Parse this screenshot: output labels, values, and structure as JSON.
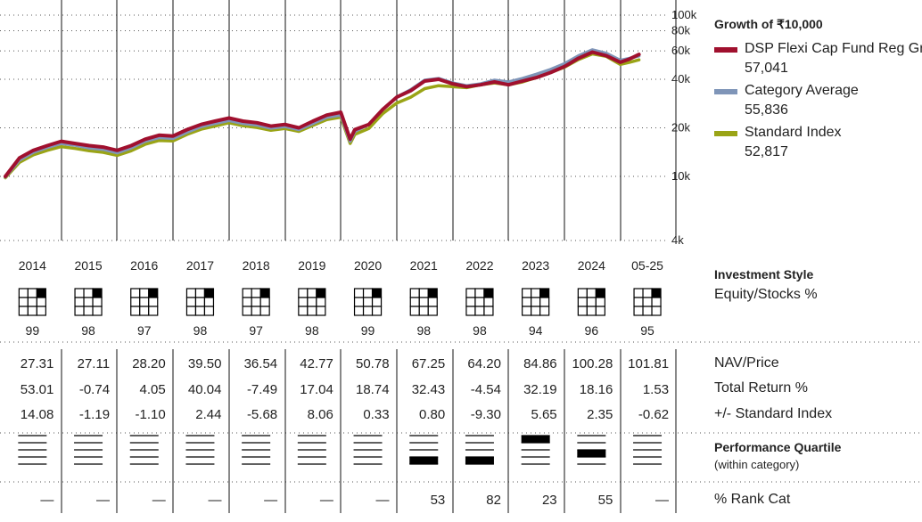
{
  "chart_data": {
    "type": "line",
    "title": "Growth of ₹10,000",
    "y_scale": "log",
    "ylim": [
      4000,
      100000
    ],
    "yticks": [
      {
        "value": 4000,
        "label": "4k"
      },
      {
        "value": 10000,
        "label": "10k"
      },
      {
        "value": 20000,
        "label": "20k"
      },
      {
        "value": 40000,
        "label": "40k"
      },
      {
        "value": 60000,
        "label": "60k"
      },
      {
        "value": 80000,
        "label": "80k"
      },
      {
        "value": 100000,
        "label": "100k"
      }
    ],
    "x_years": [
      "2014",
      "2015",
      "2016",
      "2017",
      "2018",
      "2019",
      "2020",
      "2021",
      "2022",
      "2023",
      "2024",
      "05-25"
    ],
    "x_dates": [
      "2014-01",
      "2014-04",
      "2014-07",
      "2014-10",
      "2015-01",
      "2015-04",
      "2015-07",
      "2015-10",
      "2016-01",
      "2016-04",
      "2016-07",
      "2016-10",
      "2017-01",
      "2017-04",
      "2017-07",
      "2017-10",
      "2018-01",
      "2018-04",
      "2018-07",
      "2018-10",
      "2019-01",
      "2019-04",
      "2019-07",
      "2019-10",
      "2020-01",
      "2020-03",
      "2020-04",
      "2020-07",
      "2020-10",
      "2021-01",
      "2021-04",
      "2021-07",
      "2021-10",
      "2022-01",
      "2022-04",
      "2022-07",
      "2022-10",
      "2023-01",
      "2023-04",
      "2023-07",
      "2023-10",
      "2024-01",
      "2024-04",
      "2024-07",
      "2024-10",
      "2025-01",
      "2025-03",
      "2025-05"
    ],
    "series": [
      {
        "name": "DSP Flexi Cap Fund Reg Gr",
        "color": "#a0102e",
        "end_value": "57,041",
        "values": [
          10000,
          13000,
          14500,
          15500,
          16500,
          16000,
          15500,
          15200,
          14500,
          15500,
          17000,
          18000,
          17800,
          19500,
          21000,
          22000,
          23000,
          22000,
          21500,
          20500,
          21000,
          20000,
          22000,
          24000,
          25000,
          17000,
          19500,
          21000,
          26000,
          31000,
          34000,
          39000,
          40000,
          37500,
          36000,
          37000,
          38500,
          37000,
          39000,
          41000,
          44000,
          48000,
          54000,
          59000,
          56000,
          51000,
          53500,
          57041
        ]
      },
      {
        "name": "Category Average",
        "color": "#7f95b8",
        "end_value": "55,836",
        "values": [
          9900,
          12600,
          14100,
          15100,
          16000,
          15600,
          15000,
          14700,
          14000,
          15000,
          16500,
          17400,
          17200,
          18800,
          20300,
          21300,
          22200,
          21300,
          20800,
          19900,
          20400,
          19500,
          21300,
          23200,
          24000,
          16500,
          19000,
          21000,
          26000,
          31000,
          34500,
          39500,
          40500,
          38000,
          36500,
          37500,
          39500,
          38500,
          40500,
          43000,
          46000,
          50000,
          56000,
          61000,
          58000,
          52500,
          54000,
          55836
        ]
      },
      {
        "name": "Standard Index",
        "color": "#9aa416",
        "end_value": "52,817",
        "values": [
          9800,
          12200,
          13600,
          14500,
          15300,
          14900,
          14400,
          14100,
          13500,
          14400,
          15800,
          16700,
          16600,
          18200,
          19600,
          20500,
          21500,
          20600,
          20100,
          19300,
          19800,
          19000,
          20700,
          22500,
          23300,
          16000,
          18200,
          19800,
          24500,
          28500,
          31000,
          35000,
          36500,
          36000,
          35500,
          37000,
          38000,
          37000,
          38500,
          41000,
          44000,
          47500,
          53000,
          57500,
          55500,
          49500,
          51000,
          52817
        ]
      }
    ]
  },
  "side": {
    "growth_title": "Growth of ₹10,000",
    "style_title": "Investment Style",
    "style_sub": "Equity/Stocks %",
    "nav_label": "NAV/Price",
    "tr_label": "Total Return %",
    "pm_label": "+/- Standard Index",
    "pq_title": "Performance Quartile",
    "pq_sub": "(within category)",
    "rank_label": "% Rank Cat"
  },
  "table": {
    "equity_pct": [
      "99",
      "98",
      "97",
      "98",
      "97",
      "98",
      "99",
      "98",
      "98",
      "94",
      "96",
      "95"
    ],
    "nav": [
      "27.31",
      "27.11",
      "28.20",
      "39.50",
      "36.54",
      "42.77",
      "50.78",
      "67.25",
      "64.20",
      "84.86",
      "100.28",
      "101.81"
    ],
    "total_return": [
      "53.01",
      "-0.74",
      "4.05",
      "40.04",
      "-7.49",
      "17.04",
      "18.74",
      "32.43",
      "-4.54",
      "32.19",
      "18.16",
      "1.53"
    ],
    "vs_index": [
      "14.08",
      "-1.19",
      "-1.10",
      "2.44",
      "-5.68",
      "8.06",
      "0.33",
      "0.80",
      "-9.30",
      "5.65",
      "2.35",
      "-0.62"
    ],
    "quartile": [
      0,
      0,
      0,
      0,
      0,
      0,
      0,
      4,
      4,
      1,
      3,
      0
    ],
    "rank": [
      "—",
      "—",
      "—",
      "—",
      "—",
      "—",
      "—",
      "53",
      "82",
      "23",
      "55",
      "—"
    ]
  }
}
